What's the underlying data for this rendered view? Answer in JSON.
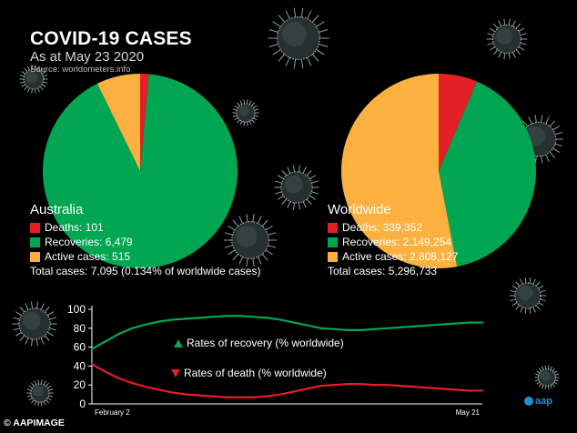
{
  "header": {
    "title": "COVID-19 CASES",
    "subtitle": "As at May 23 2020",
    "source": "Source: worldometers.info"
  },
  "colors": {
    "deaths": "#e41f26",
    "recoveries": "#00a651",
    "active": "#fbb040",
    "background": "#000000"
  },
  "australia": {
    "name": "Australia",
    "deaths_label": "Deaths: 101",
    "recoveries_label": "Recoveries: 6,479",
    "active_label": "Active cases: 515",
    "total_label": "Total cases: 7,095 (0.134% of worldwide cases)"
  },
  "worldwide": {
    "name": "Worldwide",
    "deaths_label": "Deaths: 339,352",
    "recoveries_label": "Recoveries: 2,149,254",
    "active_label": "Active cases: 2,808,127",
    "total_label": "Total cases: 5,296,733"
  },
  "line_labels": {
    "recovery": "Rates of recovery (% worldwide)",
    "death": "Rates of death (% worldwide)"
  },
  "footer": {
    "credit": "AAPIMAGE",
    "logo_text": "aap"
  },
  "chart_data": [
    {
      "type": "pie",
      "name": "Australia",
      "slices": [
        {
          "label": "Deaths",
          "value": 101
        },
        {
          "label": "Recoveries",
          "value": 6479
        },
        {
          "label": "Active cases",
          "value": 515
        }
      ]
    },
    {
      "type": "pie",
      "name": "Worldwide",
      "slices": [
        {
          "label": "Deaths",
          "value": 339352
        },
        {
          "label": "Recoveries",
          "value": 2149254
        },
        {
          "label": "Active cases",
          "value": 2808127
        }
      ]
    },
    {
      "type": "line",
      "ylim": [
        0,
        100
      ],
      "yticks": [
        0,
        20,
        40,
        60,
        80,
        100
      ],
      "xticks": [
        "February 2",
        "May 21"
      ],
      "series": [
        {
          "name": "Rates of recovery (% worldwide)",
          "values": [
            58,
            66,
            74,
            80,
            84,
            87,
            89,
            90,
            91,
            92,
            93,
            93,
            92,
            91,
            89,
            86,
            83,
            80,
            79,
            78,
            78,
            79,
            80,
            81,
            82,
            83,
            84,
            85,
            86,
            86
          ]
        },
        {
          "name": "Rates of death (% worldwide)",
          "values": [
            42,
            34,
            27,
            22,
            18,
            15,
            12,
            10,
            9,
            8,
            7,
            7,
            7,
            8,
            10,
            13,
            16,
            19,
            20,
            21,
            21,
            20,
            20,
            19,
            18,
            17,
            16,
            15,
            14,
            14
          ]
        }
      ]
    }
  ]
}
